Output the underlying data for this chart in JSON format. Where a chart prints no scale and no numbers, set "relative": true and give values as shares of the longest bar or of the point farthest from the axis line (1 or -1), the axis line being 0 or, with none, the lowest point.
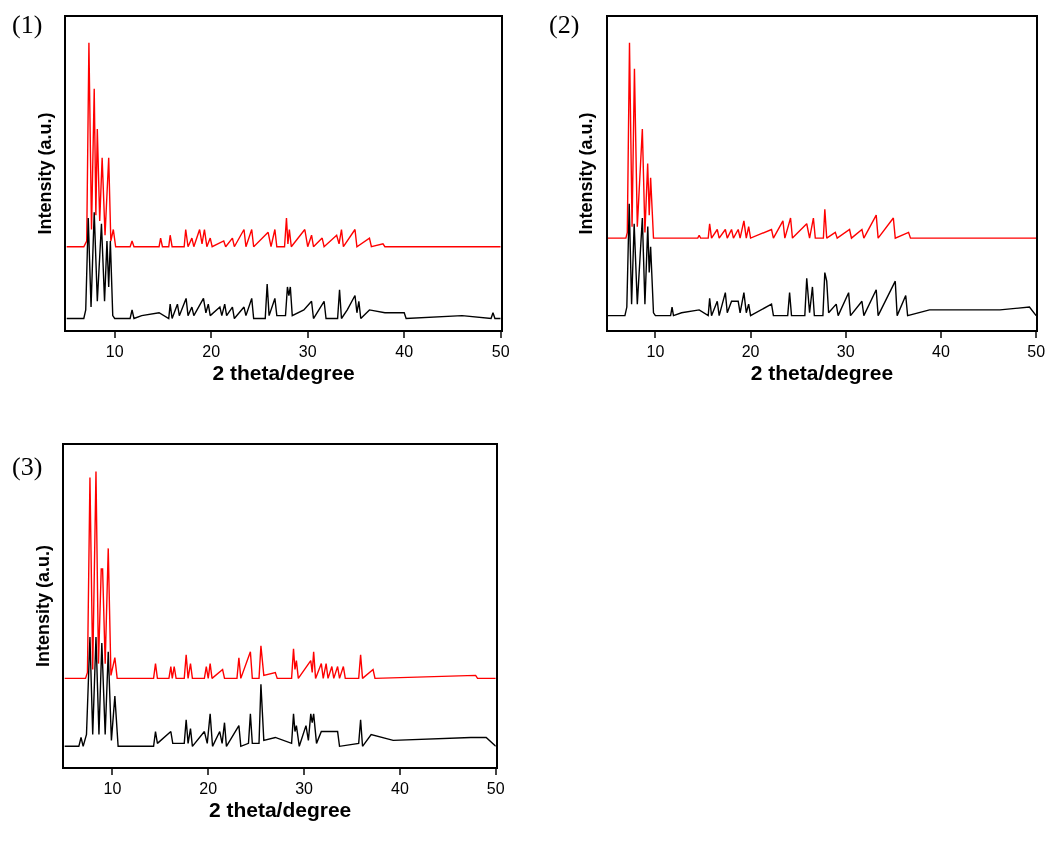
{
  "chart_data": [
    {
      "type": "line",
      "title": "(1)",
      "xlabel": "2 theta/degree",
      "ylabel": "Intensity (a.u.)",
      "xlim": [
        5,
        50
      ],
      "xticks": [
        10,
        20,
        30,
        40,
        50
      ],
      "relative": true,
      "series": [
        {
          "color": "#ff0000",
          "x": [
            5,
            6.8,
            7.1,
            7.33,
            7.6,
            7.88,
            8.05,
            8.2,
            8.45,
            8.7,
            9.0,
            9.38,
            9.6,
            9.86,
            10.1,
            11.6,
            11.8,
            12.0,
            14.6,
            14.76,
            14.95,
            15.6,
            15.75,
            15.95,
            17.2,
            17.36,
            17.6,
            18.0,
            18.2,
            18.8,
            19.05,
            19.3,
            19.55,
            19.9,
            20.1,
            21.3,
            21.5,
            22.2,
            22.4,
            23.4,
            23.6,
            24.2,
            24.4,
            25.9,
            26.2,
            26.6,
            26.8,
            27.6,
            27.8,
            27.95,
            28.1,
            28.3,
            29.7,
            30.0,
            30.4,
            30.6,
            31.5,
            31.7,
            33.0,
            33.25,
            33.5,
            33.7,
            34.9,
            35.1,
            36.4,
            36.6,
            37.8,
            38.0,
            50
          ],
          "values": [
            0.29,
            0.29,
            0.31,
            1.0,
            0.35,
            0.84,
            0.4,
            0.7,
            0.38,
            0.6,
            0.33,
            0.6,
            0.31,
            0.35,
            0.29,
            0.29,
            0.31,
            0.29,
            0.29,
            0.32,
            0.29,
            0.29,
            0.33,
            0.29,
            0.29,
            0.35,
            0.29,
            0.32,
            0.29,
            0.35,
            0.3,
            0.35,
            0.29,
            0.32,
            0.29,
            0.31,
            0.29,
            0.32,
            0.29,
            0.35,
            0.29,
            0.35,
            0.29,
            0.34,
            0.29,
            0.35,
            0.29,
            0.29,
            0.39,
            0.3,
            0.35,
            0.29,
            0.35,
            0.29,
            0.33,
            0.29,
            0.32,
            0.29,
            0.33,
            0.3,
            0.35,
            0.29,
            0.35,
            0.29,
            0.32,
            0.29,
            0.3,
            0.29,
            0.29
          ]
        },
        {
          "color": "#000000",
          "x": [
            5,
            6.8,
            7.0,
            7.26,
            7.55,
            7.88,
            8.2,
            8.63,
            8.95,
            9.2,
            9.38,
            9.55,
            9.8,
            10.0,
            11.6,
            11.8,
            12.0,
            12.8,
            14.6,
            15.6,
            15.75,
            15.95,
            16.5,
            16.7,
            17.4,
            17.6,
            18.0,
            18.2,
            19.2,
            19.45,
            19.7,
            19.9,
            20.9,
            21.1,
            21.4,
            21.6,
            22.2,
            22.4,
            23.4,
            23.6,
            24.2,
            24.4,
            25.6,
            25.8,
            26.0,
            26.6,
            26.8,
            27.7,
            27.9,
            28.05,
            28.2,
            28.4,
            29.6,
            30.4,
            30.6,
            31.7,
            31.9,
            33.1,
            33.3,
            33.5,
            34.1,
            34.9,
            35.1,
            35.3,
            35.5,
            36.4,
            38.0,
            40.0,
            40.2,
            46.0,
            49.0,
            49.2,
            49.4,
            50
          ],
          "values": [
            0.04,
            0.04,
            0.07,
            0.39,
            0.08,
            0.41,
            0.1,
            0.37,
            0.1,
            0.31,
            0.15,
            0.31,
            0.05,
            0.04,
            0.04,
            0.07,
            0.04,
            0.05,
            0.06,
            0.04,
            0.09,
            0.04,
            0.09,
            0.05,
            0.11,
            0.05,
            0.08,
            0.05,
            0.11,
            0.06,
            0.09,
            0.05,
            0.08,
            0.05,
            0.09,
            0.05,
            0.08,
            0.04,
            0.08,
            0.05,
            0.11,
            0.04,
            0.04,
            0.16,
            0.05,
            0.11,
            0.05,
            0.05,
            0.15,
            0.12,
            0.15,
            0.05,
            0.07,
            0.1,
            0.04,
            0.1,
            0.04,
            0.04,
            0.14,
            0.04,
            0.07,
            0.12,
            0.06,
            0.1,
            0.04,
            0.07,
            0.06,
            0.06,
            0.04,
            0.05,
            0.04,
            0.06,
            0.04,
            0.04
          ]
        }
      ]
    },
    {
      "type": "line",
      "title": "(2)",
      "xlabel": "2 theta/degree",
      "ylabel": "Intensity (a.u.)",
      "xlim": [
        5,
        50
      ],
      "xticks": [
        10,
        20,
        30,
        40,
        50
      ],
      "relative": true,
      "series": [
        {
          "color": "#ff0000",
          "x": [
            5,
            6.0,
            6.9,
            7.05,
            7.28,
            7.55,
            7.8,
            8.1,
            8.63,
            8.9,
            9.19,
            9.35,
            9.5,
            9.8,
            11.6,
            11.75,
            11.9,
            14.45,
            14.6,
            14.75,
            15.55,
            15.7,
            15.9,
            16.5,
            16.7,
            17.35,
            17.55,
            18.0,
            18.2,
            18.7,
            18.9,
            19.3,
            19.55,
            19.8,
            20.0,
            22.2,
            22.4,
            23.4,
            23.6,
            24.2,
            24.4,
            25.9,
            26.2,
            26.6,
            26.8,
            27.65,
            27.8,
            28.0,
            28.9,
            29.1,
            30.4,
            30.6,
            31.7,
            31.9,
            33.2,
            33.4,
            35.0,
            35.2,
            36.6,
            36.8,
            37.9,
            38.1,
            50
          ],
          "values": [
            0.32,
            0.32,
            0.32,
            0.34,
            1.0,
            0.36,
            0.91,
            0.36,
            0.7,
            0.34,
            0.58,
            0.4,
            0.53,
            0.32,
            0.32,
            0.32,
            0.32,
            0.32,
            0.33,
            0.32,
            0.32,
            0.37,
            0.32,
            0.35,
            0.32,
            0.35,
            0.32,
            0.35,
            0.32,
            0.35,
            0.32,
            0.38,
            0.32,
            0.36,
            0.32,
            0.35,
            0.32,
            0.38,
            0.32,
            0.39,
            0.32,
            0.37,
            0.32,
            0.39,
            0.32,
            0.32,
            0.42,
            0.32,
            0.34,
            0.32,
            0.35,
            0.32,
            0.35,
            0.32,
            0.4,
            0.32,
            0.39,
            0.32,
            0.34,
            0.32,
            0.32,
            0.32,
            0.32
          ]
        },
        {
          "color": "#000000",
          "x": [
            5,
            6.8,
            7.0,
            7.25,
            7.5,
            7.77,
            8.1,
            8.63,
            8.9,
            9.2,
            9.35,
            9.5,
            9.8,
            10.0,
            11.6,
            11.75,
            11.9,
            12.75,
            14.6,
            15.55,
            15.7,
            15.9,
            16.5,
            16.7,
            17.35,
            17.55,
            18.0,
            18.7,
            18.9,
            19.3,
            19.55,
            19.8,
            20.0,
            22.2,
            22.4,
            23.9,
            24.1,
            24.3,
            25.7,
            25.9,
            26.2,
            26.5,
            26.7,
            27.6,
            27.8,
            28.0,
            28.2,
            29.0,
            29.2,
            30.3,
            30.5,
            31.7,
            31.9,
            33.2,
            33.4,
            35.2,
            35.4,
            36.3,
            36.5,
            38.8,
            46.2,
            49.3,
            50
          ],
          "values": [
            0.05,
            0.05,
            0.08,
            0.44,
            0.09,
            0.37,
            0.09,
            0.39,
            0.09,
            0.36,
            0.2,
            0.29,
            0.06,
            0.05,
            0.05,
            0.08,
            0.05,
            0.06,
            0.07,
            0.05,
            0.11,
            0.05,
            0.1,
            0.05,
            0.13,
            0.06,
            0.1,
            0.1,
            0.06,
            0.13,
            0.06,
            0.09,
            0.05,
            0.09,
            0.05,
            0.05,
            0.13,
            0.05,
            0.05,
            0.18,
            0.06,
            0.15,
            0.05,
            0.05,
            0.2,
            0.17,
            0.06,
            0.09,
            0.05,
            0.13,
            0.05,
            0.1,
            0.05,
            0.14,
            0.05,
            0.17,
            0.05,
            0.12,
            0.05,
            0.07,
            0.07,
            0.08,
            0.05
          ]
        }
      ]
    },
    {
      "type": "line",
      "title": "(3)",
      "xlabel": "2 theta/degree",
      "ylabel": "Intensity (a.u.)",
      "xlim": [
        5,
        50
      ],
      "xticks": [
        10,
        20,
        30,
        40,
        50
      ],
      "relative": true,
      "series": [
        {
          "color": "#ff0000",
          "x": [
            5,
            7.2,
            7.4,
            7.66,
            7.95,
            8.29,
            8.55,
            8.84,
            8.98,
            9.25,
            9.57,
            9.85,
            10.26,
            10.5,
            14.3,
            14.5,
            14.7,
            15.9,
            16.1,
            16.25,
            16.45,
            16.65,
            17.5,
            17.7,
            17.9,
            18.15,
            18.35,
            19.6,
            19.8,
            20.0,
            20.2,
            20.4,
            21.5,
            21.7,
            23.0,
            23.2,
            23.4,
            24.4,
            24.6,
            25.3,
            25.5,
            25.8,
            27.0,
            27.2,
            28.7,
            28.9,
            29.05,
            29.2,
            29.4,
            30.7,
            30.85,
            31.0,
            31.2,
            31.8,
            32.0,
            32.3,
            32.5,
            32.9,
            33.1,
            33.5,
            33.7,
            34.1,
            34.3,
            35.7,
            35.9,
            36.1,
            37.2,
            37.4,
            47.9,
            48.1,
            50
          ],
          "values": [
            0.3,
            0.3,
            0.32,
            0.98,
            0.33,
            1.0,
            0.35,
            0.67,
            0.67,
            0.35,
            0.74,
            0.31,
            0.37,
            0.3,
            0.3,
            0.35,
            0.3,
            0.3,
            0.34,
            0.3,
            0.34,
            0.3,
            0.3,
            0.38,
            0.3,
            0.35,
            0.3,
            0.3,
            0.34,
            0.3,
            0.35,
            0.3,
            0.33,
            0.3,
            0.3,
            0.37,
            0.3,
            0.39,
            0.3,
            0.3,
            0.41,
            0.31,
            0.32,
            0.3,
            0.3,
            0.4,
            0.33,
            0.36,
            0.3,
            0.36,
            0.32,
            0.39,
            0.3,
            0.35,
            0.3,
            0.35,
            0.3,
            0.34,
            0.3,
            0.34,
            0.3,
            0.34,
            0.3,
            0.3,
            0.38,
            0.3,
            0.33,
            0.3,
            0.31,
            0.3,
            0.3
          ]
        },
        {
          "color": "#000000",
          "x": [
            5,
            6.5,
            6.73,
            6.95,
            7.3,
            7.66,
            7.95,
            8.29,
            8.6,
            8.9,
            9.25,
            9.57,
            9.9,
            10.26,
            10.6,
            14.3,
            14.5,
            14.7,
            16.1,
            16.3,
            17.5,
            17.7,
            17.9,
            18.15,
            18.35,
            19.6,
            19.9,
            20.2,
            20.45,
            21.2,
            21.45,
            21.7,
            21.9,
            23.2,
            23.4,
            24.2,
            24.4,
            24.6,
            25.3,
            25.5,
            25.8,
            27.0,
            28.7,
            28.9,
            29.05,
            29.2,
            29.5,
            30.2,
            30.45,
            30.7,
            30.85,
            31.0,
            31.3,
            31.8,
            32.9,
            33.5,
            33.7,
            35.7,
            35.9,
            36.1,
            37.0,
            39.3,
            47.4,
            49.0,
            50
          ],
          "values": [
            0.07,
            0.07,
            0.1,
            0.07,
            0.11,
            0.44,
            0.11,
            0.44,
            0.11,
            0.42,
            0.11,
            0.39,
            0.09,
            0.24,
            0.07,
            0.07,
            0.12,
            0.08,
            0.12,
            0.08,
            0.08,
            0.16,
            0.08,
            0.13,
            0.07,
            0.12,
            0.08,
            0.18,
            0.07,
            0.12,
            0.08,
            0.15,
            0.07,
            0.14,
            0.07,
            0.08,
            0.18,
            0.08,
            0.08,
            0.28,
            0.09,
            0.1,
            0.08,
            0.18,
            0.12,
            0.14,
            0.07,
            0.14,
            0.09,
            0.18,
            0.15,
            0.18,
            0.08,
            0.12,
            0.12,
            0.12,
            0.07,
            0.08,
            0.16,
            0.07,
            0.11,
            0.09,
            0.1,
            0.1,
            0.07
          ]
        }
      ]
    }
  ]
}
